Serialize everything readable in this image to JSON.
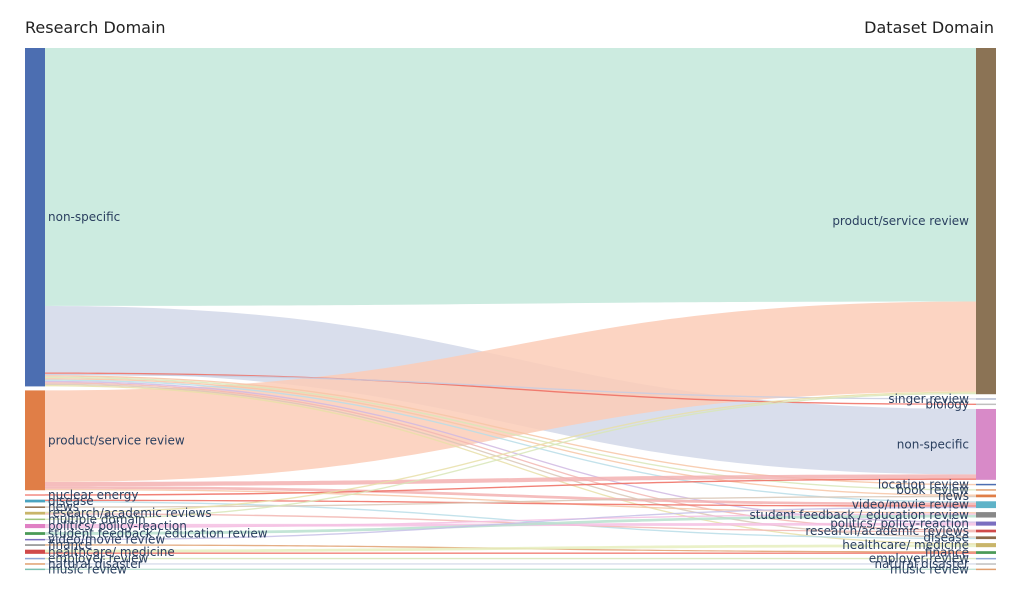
{
  "titles": {
    "left": "Research Domain",
    "right": "Dataset Domain"
  },
  "left_nodes": [
    {
      "label": "non-specific",
      "color": "#4c6eb1"
    },
    {
      "label": "product/service review",
      "color": "#e07e47"
    },
    {
      "label": "nuclear energy",
      "color": "#f28b82"
    },
    {
      "label": "disease",
      "color": "#4aa3c0"
    },
    {
      "label": "news",
      "color": "#8b6a4a"
    },
    {
      "label": "research/academic reviews",
      "color": "#c9b56a"
    },
    {
      "label": "multiple domain",
      "color": "#9dc37d"
    },
    {
      "label": "politics/ policy-reaction",
      "color": "#e080c4"
    },
    {
      "label": "student feedback / education review",
      "color": "#4a9a57"
    },
    {
      "label": "video/movie review",
      "color": "#7a6fc0"
    },
    {
      "label": "finance",
      "color": "#888888"
    },
    {
      "label": "healthcare/ medicine",
      "color": "#d04a4a"
    },
    {
      "label": "employer review",
      "color": "#8fa6d6"
    },
    {
      "label": "natural disaster",
      "color": "#e0a070"
    },
    {
      "label": "music review",
      "color": "#7cc0b0"
    }
  ],
  "right_nodes": [
    {
      "label": "product/service review",
      "color": "#8b7355"
    },
    {
      "label": "singer review",
      "color": "#b0b8d0"
    },
    {
      "label": "biology",
      "color": "#c0c0c0"
    },
    {
      "label": "non-specific",
      "color": "#d88ac8"
    },
    {
      "label": "location review",
      "color": "#4c6eb1"
    },
    {
      "label": "book review",
      "color": "#e0a070"
    },
    {
      "label": "news",
      "color": "#e07e47"
    },
    {
      "label": "video/movie review",
      "color": "#5fb3c8"
    },
    {
      "label": "student feedback / education review",
      "color": "#888888"
    },
    {
      "label": "politics/ policy-reaction",
      "color": "#7a6fc0"
    },
    {
      "label": "research/academic reviews",
      "color": "#d04a4a"
    },
    {
      "label": "disease",
      "color": "#8b6a4a"
    },
    {
      "label": "healthcare/ medicine",
      "color": "#c9b56a"
    },
    {
      "label": "finance",
      "color": "#4a9a57"
    },
    {
      "label": "employer review",
      "color": "#8fa6d6"
    },
    {
      "label": "natural disaster",
      "color": "#c0c0c0"
    },
    {
      "label": "music review",
      "color": "#e0a070"
    }
  ],
  "links": [
    {
      "from": "non-specific",
      "to": "product/service review",
      "value": 186,
      "color": "#c3e8db"
    },
    {
      "from": "non-specific",
      "to": "non-specific",
      "value": 48,
      "color": "#d2d8e9"
    },
    {
      "from": "product/service review",
      "to": "product/service review",
      "value": 66,
      "color": "#fbcdb7"
    },
    {
      "from": "non-specific",
      "to": "biology",
      "value": 1,
      "color": "#ee6b5f"
    },
    {
      "from": "non-specific",
      "to": "singer review",
      "value": 1,
      "color": "#c8cde0"
    },
    {
      "from": "non-specific",
      "to": "location review",
      "value": 1,
      "color": "#f7c6a6"
    },
    {
      "from": "non-specific",
      "to": "book review",
      "value": 1,
      "color": "#d8e6b9"
    },
    {
      "from": "non-specific",
      "to": "news",
      "value": 1,
      "color": "#f7c6a6"
    },
    {
      "from": "non-specific",
      "to": "video/movie review",
      "value": 1,
      "color": "#b9dde8"
    },
    {
      "from": "non-specific",
      "to": "politics/ policy-reaction",
      "value": 1,
      "color": "#d0b8e2"
    },
    {
      "from": "non-specific",
      "to": "research/academic reviews",
      "value": 1,
      "color": "#f2b6b2"
    },
    {
      "from": "non-specific",
      "to": "disease",
      "value": 1,
      "color": "#d9c7b6"
    },
    {
      "from": "non-specific",
      "to": "healthcare/ medicine",
      "value": 1,
      "color": "#e8dfa8"
    },
    {
      "from": "product/service review",
      "to": "non-specific",
      "value": 3,
      "color": "#f3b1b1"
    },
    {
      "from": "product/service review",
      "to": "video/movie review",
      "value": 2,
      "color": "#f3b1b1"
    },
    {
      "from": "product/service review",
      "to": "student feedback / education review",
      "value": 1,
      "color": "#f7c6a6"
    },
    {
      "from": "nuclear energy",
      "to": "non-specific",
      "value": 1,
      "color": "#ee6b5f"
    },
    {
      "from": "disease",
      "to": "video/movie review",
      "value": 1,
      "color": "#ee6b5f"
    },
    {
      "from": "disease",
      "to": "disease",
      "value": 1,
      "color": "#b9dde8"
    },
    {
      "from": "news",
      "to": "news",
      "value": 1,
      "color": "#d9c7b6"
    },
    {
      "from": "research/academic reviews",
      "to": "product/service review",
      "value": 1,
      "color": "#e8dfa8"
    },
    {
      "from": "research/academic reviews",
      "to": "research/academic reviews",
      "value": 1,
      "color": "#f2b6b2"
    },
    {
      "from": "multiple domain",
      "to": "product/service review",
      "value": 1,
      "color": "#d8e6b9"
    },
    {
      "from": "politics/ policy-reaction",
      "to": "politics/ policy-reaction",
      "value": 2,
      "color": "#f4bfe3"
    },
    {
      "from": "politics/ policy-reaction",
      "to": "student feedback / education review",
      "value": 1,
      "color": "#f4bfe3"
    },
    {
      "from": "student feedback / education review",
      "to": "student feedback / education review",
      "value": 2,
      "color": "#b8e0cf"
    },
    {
      "from": "video/movie review",
      "to": "video/movie review",
      "value": 1,
      "color": "#c6c0e6"
    },
    {
      "from": "finance",
      "to": "finance",
      "value": 1,
      "color": "#e0a070"
    },
    {
      "from": "healthcare/ medicine",
      "to": "healthcare/ medicine",
      "value": 2,
      "color": "#e6eebe"
    },
    {
      "from": "healthcare/ medicine",
      "to": "finance",
      "value": 1,
      "color": "#ee6b5f"
    },
    {
      "from": "employer review",
      "to": "employer review",
      "value": 1,
      "color": "#d8e6b9"
    },
    {
      "from": "natural disaster",
      "to": "natural disaster",
      "value": 1,
      "color": "#d2d8e9"
    },
    {
      "from": "music review",
      "to": "music review",
      "value": 1,
      "color": "#b8e0cf"
    }
  ]
}
